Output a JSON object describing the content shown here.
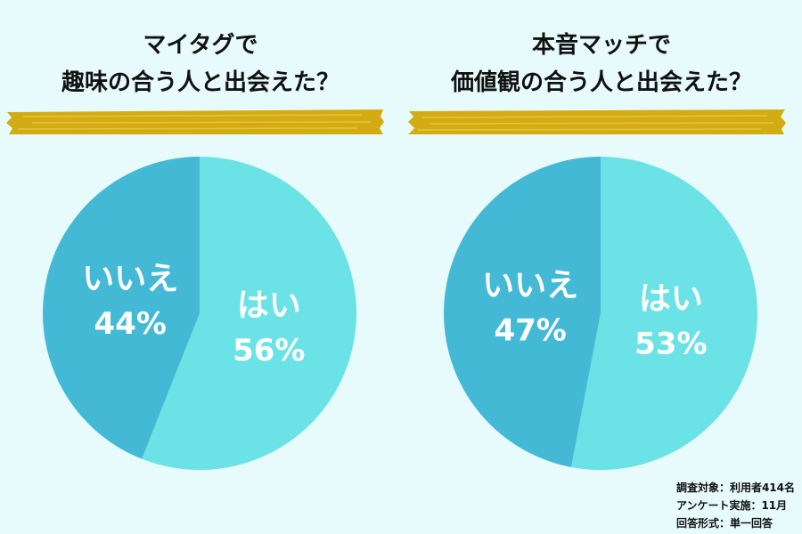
{
  "colors": {
    "yes": "#6be2e5",
    "no": "#44b9d5",
    "label": "#ffffff",
    "brush": "#d3ac13",
    "background": "#e7fbfc"
  },
  "chart_data": [
    {
      "type": "pie",
      "title": [
        "マイタグで",
        "趣味の合う人と出会えた？"
      ],
      "slices": [
        {
          "label": "はい",
          "value": 56,
          "value_label": "56%"
        },
        {
          "label": "いいえ",
          "value": 44,
          "value_label": "44%"
        }
      ]
    },
    {
      "type": "pie",
      "title": [
        "本音マッチで",
        "価値観の合う人と出会えた？"
      ],
      "slices": [
        {
          "label": "はい",
          "value": 53,
          "value_label": "53%"
        },
        {
          "label": "いいえ",
          "value": 47,
          "value_label": "47%"
        }
      ]
    }
  ],
  "footnote": {
    "line1": "調査対象：利用者414名",
    "line2": "アンケート実施：11月",
    "line3": "回答形式：単一回答"
  }
}
